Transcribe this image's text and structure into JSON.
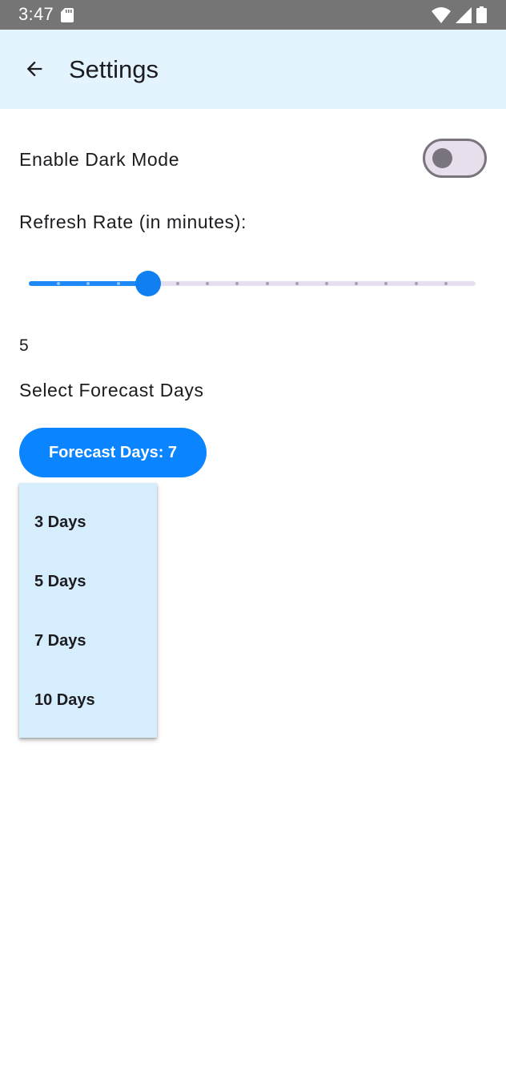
{
  "status_bar": {
    "time": "3:47",
    "icons": [
      "sd-card-icon",
      "wifi-icon",
      "signal-icon",
      "battery-icon"
    ]
  },
  "app_bar": {
    "title": "Settings",
    "back_icon": "arrow-back-icon",
    "background": "#e3f4ff"
  },
  "settings": {
    "dark_mode": {
      "label": "Enable Dark Mode",
      "enabled": false
    },
    "refresh_rate": {
      "label": "Refresh Rate (in minutes):",
      "value": "5",
      "slider": {
        "min": 1,
        "max": 16,
        "step": 1,
        "value": 5
      }
    },
    "forecast": {
      "label": "Select Forecast Days",
      "button_label": "Forecast Days: 7",
      "options": [
        "3 Days",
        "5 Days",
        "7 Days",
        "10 Days"
      ],
      "menu_open": true
    }
  },
  "colors": {
    "accent": "#0a84ff",
    "status_bar": "#757575",
    "menu_background": "#d6edfd"
  }
}
